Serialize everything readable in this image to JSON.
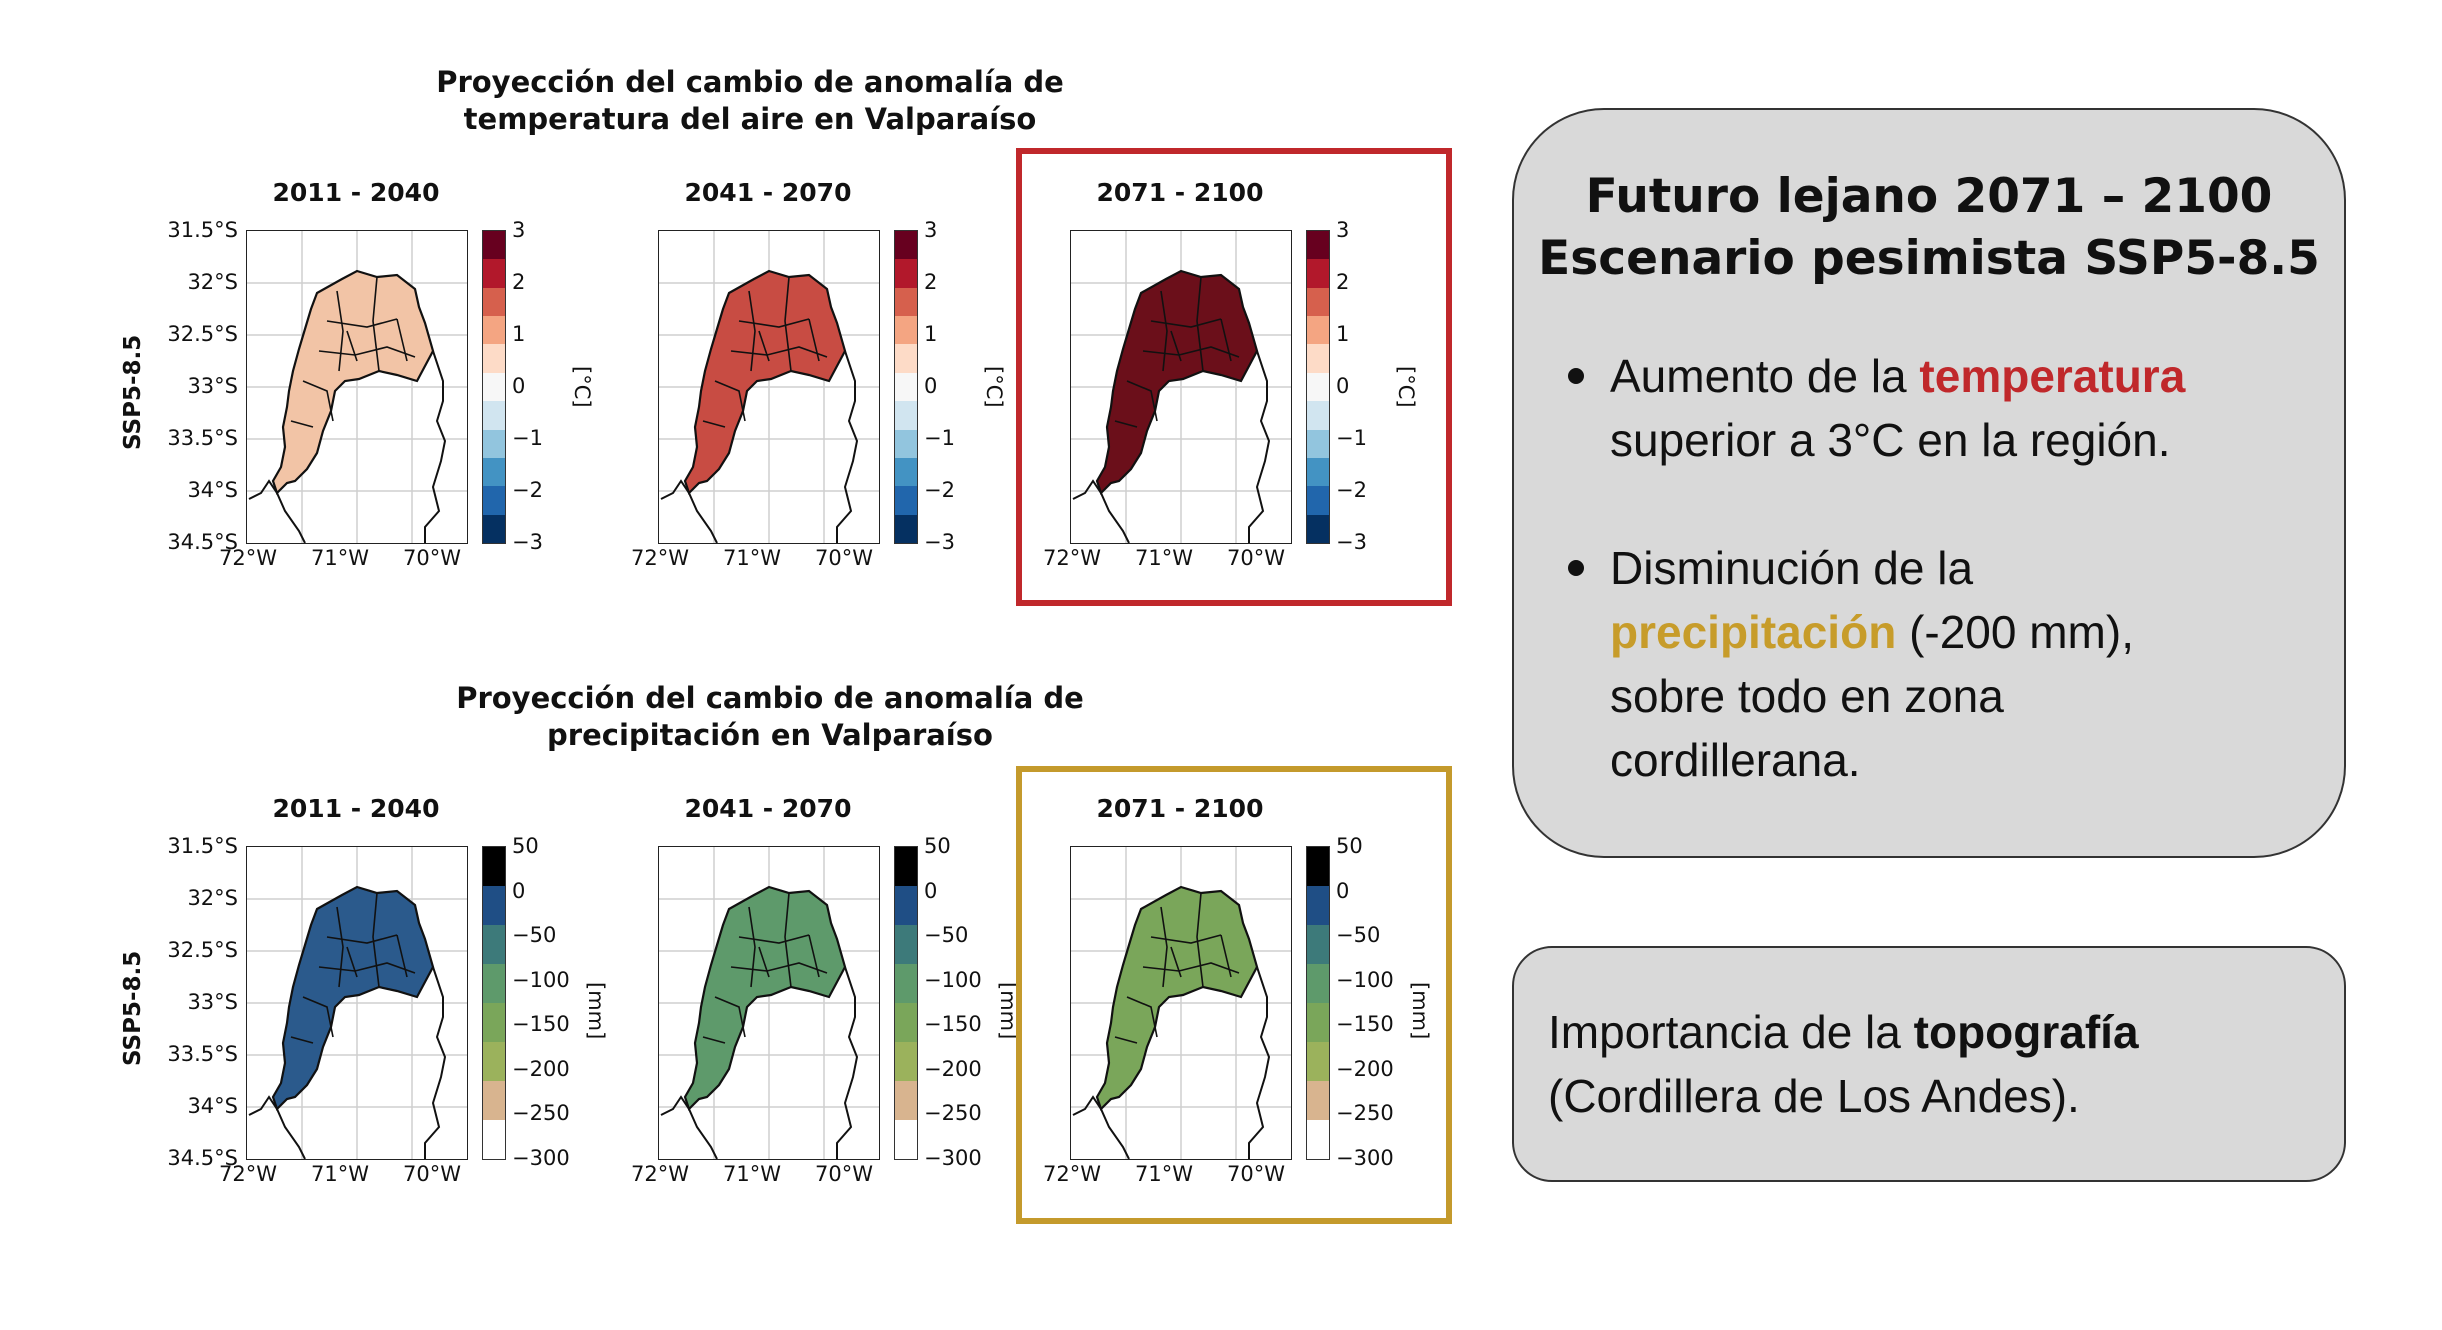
{
  "temperature_figure": {
    "title_line1": "Proyección del cambio de anomalía de",
    "title_line2": "temperatura del aire en Valparaíso",
    "row_label": "SSP5-8.5",
    "periods": [
      "2011 - 2040",
      "2041 - 2070",
      "2071 - 2100"
    ],
    "lat_ticks": [
      "31.5°S",
      "32°S",
      "32.5°S",
      "33°S",
      "33.5°S",
      "34°S",
      "34.5°S"
    ],
    "lon_ticks": [
      "72°W",
      "71°W",
      "70°W"
    ],
    "colorbar_ticks": [
      "3",
      "2",
      "1",
      "0",
      "−1",
      "−2",
      "−3"
    ],
    "colorbar_unit": "[°C]",
    "map_fill_colors": [
      "#f2c4a6",
      "#c84c43",
      "#6b0f1a"
    ],
    "highlight_color": "#c0282b"
  },
  "precipitation_figure": {
    "title_line1": "Proyección del cambio de anomalía de",
    "title_line2": "precipitación en Valparaíso",
    "row_label": "SSP5-8.5",
    "periods": [
      "2011 - 2040",
      "2041 - 2070",
      "2071 - 2100"
    ],
    "lat_ticks": [
      "31.5°S",
      "32°S",
      "32.5°S",
      "33°S",
      "33.5°S",
      "34°S",
      "34.5°S"
    ],
    "lon_ticks": [
      "72°W",
      "71°W",
      "70°W"
    ],
    "colorbar_ticks": [
      "50",
      "0",
      "−50",
      "−100",
      "−150",
      "−200",
      "−250",
      "−300"
    ],
    "colorbar_unit": "[mm]",
    "map_fill_colors": [
      "#2b5a8c",
      "#5e9a6b",
      "#7aa65a"
    ],
    "highlight_color": "#c49a2c"
  },
  "summary_panel": {
    "title_line1": "Futuro lejano 2071 – 2100",
    "title_line2": "Escenario pesimista SSP5-8.5",
    "bullet1_prefix": "Aumento de la ",
    "bullet1_highlight": "temperatura",
    "bullet1_suffix": "superior a 3°C en la región.",
    "bullet2_prefix": "Disminución de la",
    "bullet2_highlight": "precipitación",
    "bullet2_rest": " (-200 mm),",
    "bullet2_line3": "sobre todo en zona",
    "bullet2_line4": "cordillerana."
  },
  "topography_panel": {
    "line1_prefix": "Importancia de la ",
    "line1_bold": "topografía",
    "line2": "(Cordillera de Los Andes)."
  }
}
